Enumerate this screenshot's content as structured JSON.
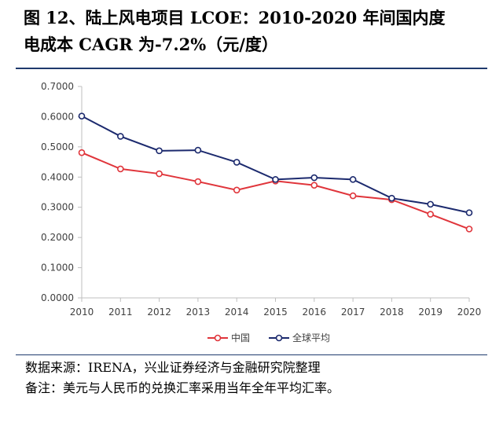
{
  "title": {
    "line1": "图 12、陆上风电项目 LCOE：2010-2020 年间国内度",
    "line2": "电成本 CAGR 为-7.2%（元/度）"
  },
  "chart_data": {
    "type": "line",
    "x": [
      "2010",
      "2011",
      "2012",
      "2013",
      "2014",
      "2015",
      "2016",
      "2017",
      "2018",
      "2019",
      "2020"
    ],
    "y_ticks": [
      "0.0000",
      "0.1000",
      "0.2000",
      "0.3000",
      "0.4000",
      "0.5000",
      "0.6000",
      "0.7000"
    ],
    "ylim": [
      0,
      0.7
    ],
    "grid": false,
    "legend_position": "bottom",
    "series": [
      {
        "name": "中国",
        "color": "#e0353b",
        "values": [
          0.481,
          0.427,
          0.411,
          0.385,
          0.357,
          0.387,
          0.373,
          0.338,
          0.325,
          0.277,
          0.228
        ]
      },
      {
        "name": "全球平均",
        "color": "#1c2a6e",
        "values": [
          0.602,
          0.535,
          0.487,
          0.489,
          0.449,
          0.392,
          0.398,
          0.392,
          0.33,
          0.31,
          0.282
        ]
      }
    ]
  },
  "footer": {
    "source": "数据来源：IRENA，兴业证券经济与金融研究院整理",
    "note": "备注：美元与人民币的兑换汇率采用当年全年平均汇率。"
  }
}
